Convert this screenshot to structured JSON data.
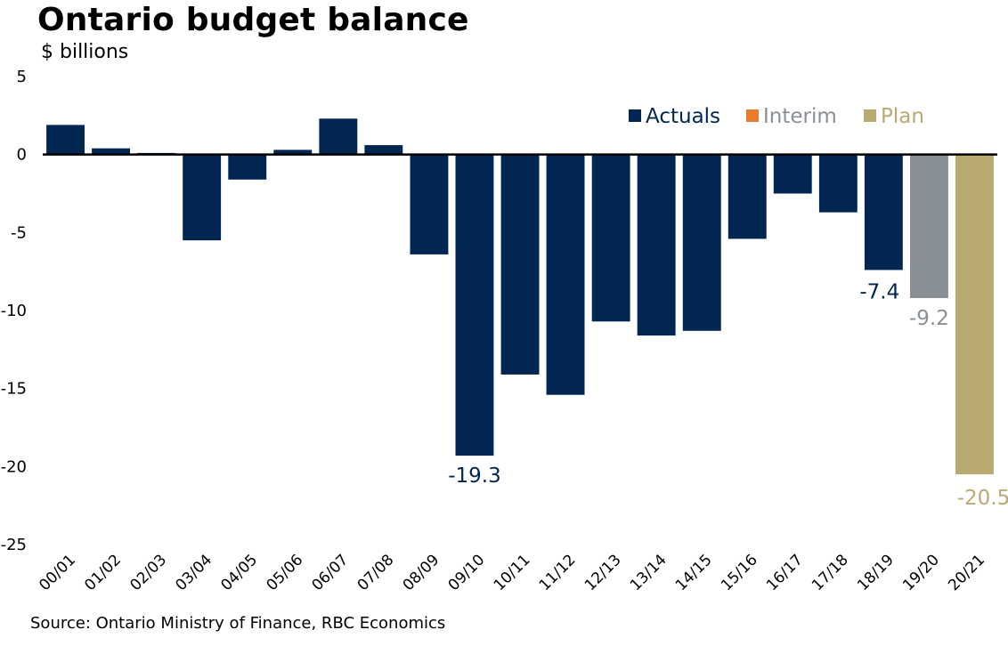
{
  "chart_data": {
    "type": "bar",
    "title": "Ontario budget balance",
    "subtitle": "$ billions",
    "source": "Source: Ontario Ministry of Finance, RBC Economics",
    "xlabel": "",
    "ylabel": "$ billions",
    "ylim": [
      -25,
      5
    ],
    "yticks": [
      5,
      0,
      -5,
      -10,
      -15,
      -20,
      -25
    ],
    "grid": false,
    "legend_position": "top-right",
    "categories": [
      "00/01",
      "01/02",
      "02/03",
      "03/04",
      "04/05",
      "05/06",
      "06/07",
      "07/08",
      "08/09",
      "09/10",
      "10/11",
      "11/12",
      "12/13",
      "13/14",
      "14/15",
      "15/16",
      "16/17",
      "17/18",
      "18/19",
      "19/20",
      "20/21"
    ],
    "values": [
      1.9,
      0.4,
      0.1,
      -5.5,
      -1.6,
      0.3,
      2.3,
      0.6,
      -6.4,
      -19.3,
      -14.1,
      -15.4,
      -10.7,
      -11.6,
      -11.3,
      -5.4,
      -2.5,
      -3.7,
      -7.4,
      -9.2,
      -20.5
    ],
    "bar_types": [
      "Actuals",
      "Actuals",
      "Actuals",
      "Actuals",
      "Actuals",
      "Actuals",
      "Actuals",
      "Actuals",
      "Actuals",
      "Actuals",
      "Actuals",
      "Actuals",
      "Actuals",
      "Actuals",
      "Actuals",
      "Actuals",
      "Actuals",
      "Actuals",
      "Actuals",
      "Interim",
      "Plan"
    ],
    "series": [
      {
        "name": "Actuals",
        "color": "#002651",
        "text_color": "#002651"
      },
      {
        "name": "Interim",
        "color": "#898f97",
        "legend_swatch_color": "#e87b2e",
        "text_color": "#898f97"
      },
      {
        "name": "Plan",
        "color": "#b9aa72",
        "text_color": "#b9aa72"
      }
    ],
    "data_labels": [
      {
        "index": 9,
        "text": "-19.3"
      },
      {
        "index": 18,
        "text": "-7.4"
      },
      {
        "index": 19,
        "text": "-9.2"
      },
      {
        "index": 20,
        "text": "-20.5"
      }
    ]
  }
}
